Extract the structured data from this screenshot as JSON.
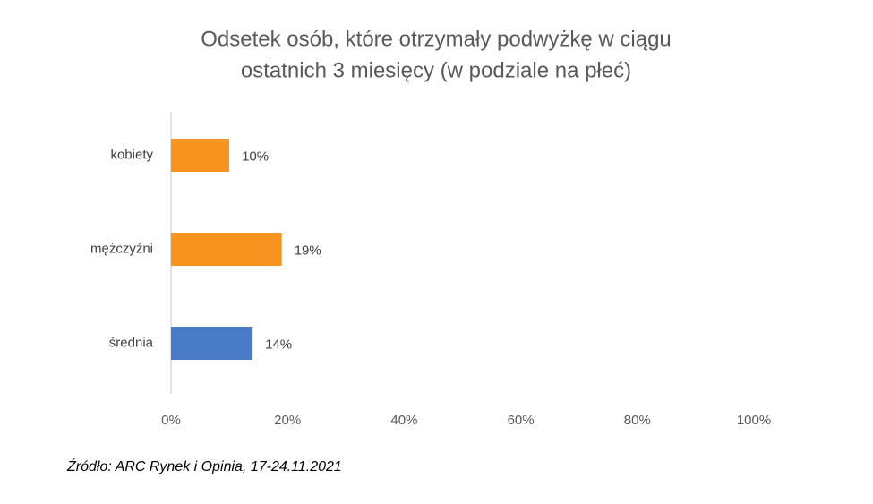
{
  "chart_data": {
    "type": "bar",
    "orientation": "horizontal",
    "title": "Odsetek osób, które otrzymały podwyżkę w ciągu ostatnich 3 miesięcy (w podziale na płeć)",
    "title_lines": [
      "Odsetek osób, które otrzymały podwyżkę w ciągu",
      "ostatnich 3 miesięcy (w podziale na płeć)"
    ],
    "categories": [
      "kobiety",
      "mężczyźni",
      "średnia"
    ],
    "values": [
      10,
      19,
      14
    ],
    "value_labels": [
      "10%",
      "19%",
      "14%"
    ],
    "colors": [
      "#f7931e",
      "#f7931e",
      "#4a7bc6"
    ],
    "xlim": [
      0,
      100
    ],
    "xticks": [
      {
        "value": 0,
        "label": "0%"
      },
      {
        "value": 20,
        "label": "20%"
      },
      {
        "value": 40,
        "label": "40%"
      },
      {
        "value": 60,
        "label": "60%"
      },
      {
        "value": 80,
        "label": "80%"
      },
      {
        "value": 100,
        "label": "100%"
      }
    ],
    "grid": false,
    "source": "Źródło: ARC Rynek i Opinia, 17-24.11.2021"
  }
}
